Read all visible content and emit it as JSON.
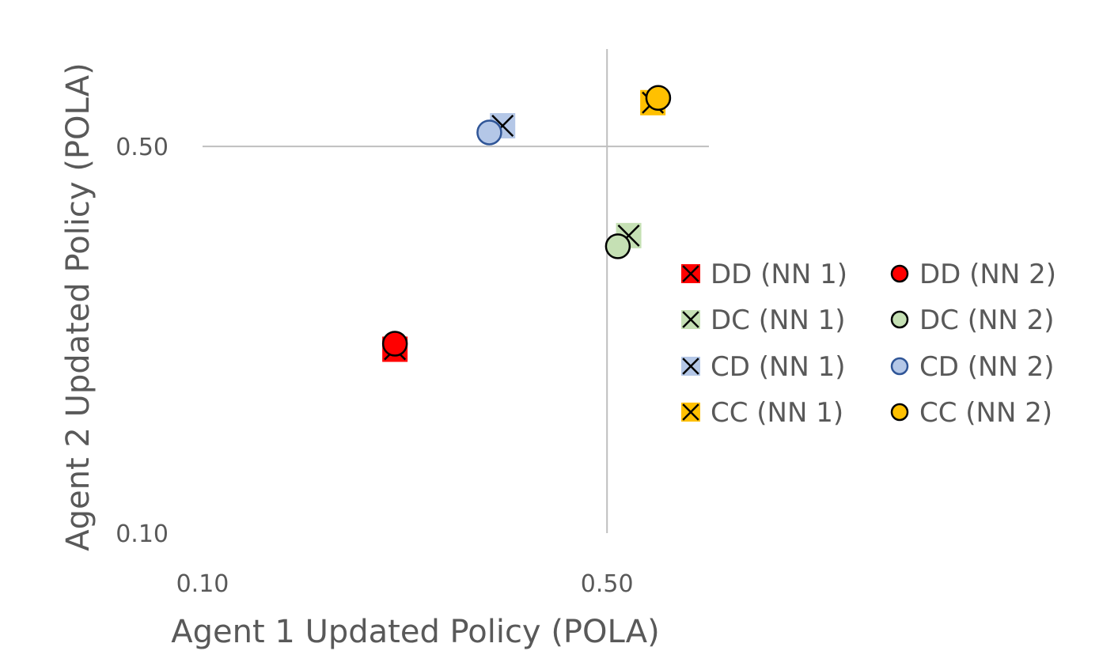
{
  "chart_data": {
    "type": "scatter",
    "xlabel": "Agent 1 Updated Policy (POLA)",
    "ylabel": "Agent 2 Updated Policy (POLA)",
    "xlim": [
      0.1,
      0.75
    ],
    "ylim": [
      0.1,
      0.75
    ],
    "x_ticks": [
      {
        "value": 0.1,
        "label": "0.10"
      },
      {
        "value": 0.5,
        "label": "0.50"
      }
    ],
    "y_ticks": [
      {
        "value": 0.1,
        "label": "0.10"
      },
      {
        "value": 0.5,
        "label": "0.50"
      }
    ],
    "grid": false,
    "crosshair": {
      "x": 0.5,
      "y": 0.5
    },
    "legend_position": "right",
    "series": [
      {
        "name": "DD (NN 1)",
        "marker": "x-square",
        "fill": "#ff0000",
        "edge": "#000000",
        "points": [
          {
            "x": 0.215,
            "y": 0.215
          }
        ]
      },
      {
        "name": "DD (NN 2)",
        "marker": "circle",
        "fill": "#ff0000",
        "edge": "#000000",
        "points": [
          {
            "x": 0.215,
            "y": 0.22
          }
        ]
      },
      {
        "name": "DC (NN 1)",
        "marker": "x-square",
        "fill": "#c5e0b4",
        "edge": "#000000",
        "points": [
          {
            "x": 0.545,
            "y": 0.345
          }
        ]
      },
      {
        "name": "DC (NN 2)",
        "marker": "circle",
        "fill": "#c5e0b4",
        "edge": "#000000",
        "points": [
          {
            "x": 0.522,
            "y": 0.33
          }
        ]
      },
      {
        "name": "CD (NN 1)",
        "marker": "x-square",
        "fill": "#b4c7e7",
        "edge": "#000000",
        "points": [
          {
            "x": 0.33,
            "y": 0.545
          }
        ]
      },
      {
        "name": "CD (NN 2)",
        "marker": "circle",
        "fill": "#b4c7e7",
        "edge": "#2f5597",
        "points": [
          {
            "x": 0.313,
            "y": 0.53
          }
        ]
      },
      {
        "name": "CC (NN 1)",
        "marker": "x-square",
        "fill": "#ffc000",
        "edge": "#000000",
        "points": [
          {
            "x": 0.6,
            "y": 0.6
          }
        ]
      },
      {
        "name": "CC (NN 2)",
        "marker": "circle",
        "fill": "#ffc000",
        "edge": "#000000",
        "points": [
          {
            "x": 0.613,
            "y": 0.612
          }
        ]
      }
    ]
  }
}
